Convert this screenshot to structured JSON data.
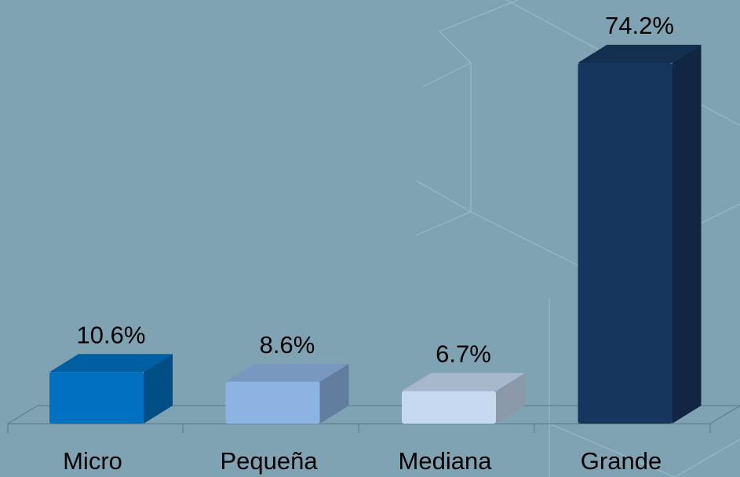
{
  "chart_data": {
    "type": "bar",
    "categories": [
      "Micro",
      "Pequeña",
      "Mediana",
      "Grande"
    ],
    "values": [
      10.6,
      8.6,
      6.7,
      74.2
    ],
    "value_labels": [
      "10.6%",
      "8.6%",
      "6.7%",
      "74.2%"
    ],
    "colors": [
      "#0070c0",
      "#8db3e2",
      "#c5d9f1",
      "#17365d"
    ]
  }
}
